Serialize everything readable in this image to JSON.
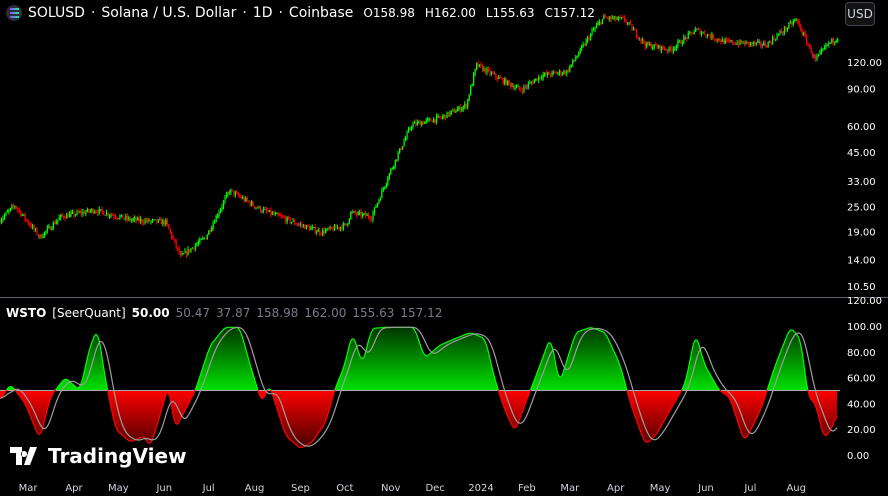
{
  "header": {
    "symbol": "SOLUSD",
    "name": "Solana / U.S. Dollar",
    "interval": "1D",
    "exchange": "Coinbase",
    "open": "O158.98",
    "high": "H162.00",
    "low": "L155.63",
    "close": "C157.12",
    "currency_button": "USD"
  },
  "indicator": {
    "name": "WSTO",
    "author": "[SeerQuant]",
    "values": [
      "50.00",
      "50.47",
      "37.87",
      "158.98",
      "162.00",
      "155.63",
      "157.12"
    ]
  },
  "branding": {
    "text": "TradingView"
  },
  "colors": {
    "up": "#00ff00",
    "down": "#ff0000",
    "neutral": "#808080",
    "signal": "#9e9e9e"
  },
  "chart_data": [
    {
      "type": "candlestick",
      "scale": "log",
      "yticks": [
        "120.00",
        "90.00",
        "60.00",
        "45.00",
        "33.00",
        "25.00",
        "19.00",
        "14.00",
        "10.50"
      ],
      "key_closes": [
        [
          "2023-02-10",
          21.6
        ],
        [
          "2023-02-20",
          25.2
        ],
        [
          "2023-03-09",
          17.9
        ],
        [
          "2023-03-23",
          22.3
        ],
        [
          "2023-04-15",
          24
        ],
        [
          "2023-05-09",
          21.6
        ],
        [
          "2023-06-02",
          21
        ],
        [
          "2023-06-12",
          14.4
        ],
        [
          "2023-06-29",
          17.9
        ],
        [
          "2023-07-15",
          29.6
        ],
        [
          "2023-08-05",
          24.2
        ],
        [
          "2023-09-01",
          20.4
        ],
        [
          "2023-09-15",
          18.9
        ],
        [
          "2023-10-02",
          20.4
        ],
        [
          "2023-10-05",
          23.3
        ],
        [
          "2023-10-19",
          22.3
        ],
        [
          "2023-11-01",
          37
        ],
        [
          "2023-11-15",
          60.6
        ],
        [
          "2023-12-05",
          65.5
        ],
        [
          "2023-12-22",
          75
        ],
        [
          "2023-12-29",
          116
        ],
        [
          "2024-01-15",
          98.6
        ],
        [
          "2024-01-28",
          88.6
        ],
        [
          "2024-02-11",
          104
        ],
        [
          "2024-02-28",
          108
        ],
        [
          "2024-03-17",
          170
        ],
        [
          "2024-03-24",
          194
        ],
        [
          "2024-04-07",
          190
        ],
        [
          "2024-04-21",
          145
        ],
        [
          "2024-05-08",
          137
        ],
        [
          "2024-05-25",
          170
        ],
        [
          "2024-06-14",
          149
        ],
        [
          "2024-07-12",
          145
        ],
        [
          "2024-08-01",
          190
        ],
        [
          "2024-08-14",
          122
        ],
        [
          "2024-08-22",
          145
        ],
        [
          "2024-08-29",
          157.12
        ]
      ]
    },
    {
      "type": "line",
      "name": "WSTO",
      "ylim": [
        0,
        120
      ],
      "midline": 50,
      "yticks": [
        "120.00",
        "100.00",
        "80.00",
        "60.00",
        "40.00",
        "20.00",
        "0.00"
      ],
      "xticks": [
        "Mar",
        "Apr",
        "May",
        "Jun",
        "Jul",
        "Aug",
        "Sep",
        "Oct",
        "Nov",
        "Dec",
        "2024",
        "Feb",
        "Mar",
        "Apr",
        "May",
        "Jun",
        "Jul",
        "Aug"
      ],
      "values": [
        [
          "2023-02-10",
          42
        ],
        [
          "2023-02-17",
          55
        ],
        [
          "2023-02-27",
          40
        ],
        [
          "2023-03-09",
          12
        ],
        [
          "2023-03-16",
          45
        ],
        [
          "2023-03-26",
          60
        ],
        [
          "2023-04-05",
          50
        ],
        [
          "2023-04-12",
          85
        ],
        [
          "2023-04-17",
          98
        ],
        [
          "2023-04-22",
          60
        ],
        [
          "2023-04-29",
          20
        ],
        [
          "2023-05-09",
          10
        ],
        [
          "2023-05-19",
          15
        ],
        [
          "2023-05-22",
          5
        ],
        [
          "2023-05-29",
          30
        ],
        [
          "2023-06-04",
          55
        ],
        [
          "2023-06-08",
          20
        ],
        [
          "2023-06-13",
          30
        ],
        [
          "2023-06-22",
          50
        ],
        [
          "2023-07-02",
          85
        ],
        [
          "2023-07-12",
          99
        ],
        [
          "2023-07-22",
          99
        ],
        [
          "2023-07-29",
          70
        ],
        [
          "2023-08-06",
          40
        ],
        [
          "2023-08-11",
          55
        ],
        [
          "2023-08-22",
          15
        ],
        [
          "2023-09-01",
          5
        ],
        [
          "2023-09-09",
          10
        ],
        [
          "2023-09-18",
          25
        ],
        [
          "2023-09-24",
          50
        ],
        [
          "2023-10-01",
          70
        ],
        [
          "2023-10-06",
          95
        ],
        [
          "2023-10-13",
          70
        ],
        [
          "2023-10-19",
          98
        ],
        [
          "2023-10-28",
          99
        ],
        [
          "2023-11-17",
          99
        ],
        [
          "2023-11-24",
          75
        ],
        [
          "2023-12-04",
          85
        ],
        [
          "2023-12-14",
          90
        ],
        [
          "2023-12-25",
          95
        ],
        [
          "2024-01-04",
          90
        ],
        [
          "2024-01-10",
          60
        ],
        [
          "2024-01-17",
          35
        ],
        [
          "2024-01-24",
          18
        ],
        [
          "2024-01-31",
          40
        ],
        [
          "2024-02-10",
          70
        ],
        [
          "2024-02-17",
          92
        ],
        [
          "2024-02-23",
          55
        ],
        [
          "2024-03-05",
          95
        ],
        [
          "2024-03-15",
          99
        ],
        [
          "2024-03-25",
          95
        ],
        [
          "2024-04-04",
          70
        ],
        [
          "2024-04-11",
          40
        ],
        [
          "2024-04-21",
          8
        ],
        [
          "2024-04-28",
          15
        ],
        [
          "2024-05-08",
          35
        ],
        [
          "2024-05-18",
          55
        ],
        [
          "2024-05-25",
          95
        ],
        [
          "2024-05-31",
          70
        ],
        [
          "2024-06-10",
          50
        ],
        [
          "2024-06-17",
          45
        ],
        [
          "2024-06-27",
          10
        ],
        [
          "2024-07-08",
          35
        ],
        [
          "2024-07-18",
          70
        ],
        [
          "2024-07-28",
          99
        ],
        [
          "2024-08-04",
          90
        ],
        [
          "2024-08-09",
          45
        ],
        [
          "2024-08-14",
          40
        ],
        [
          "2024-08-20",
          12
        ],
        [
          "2024-08-27",
          25
        ],
        [
          "2024-08-29",
          40
        ]
      ]
    }
  ]
}
